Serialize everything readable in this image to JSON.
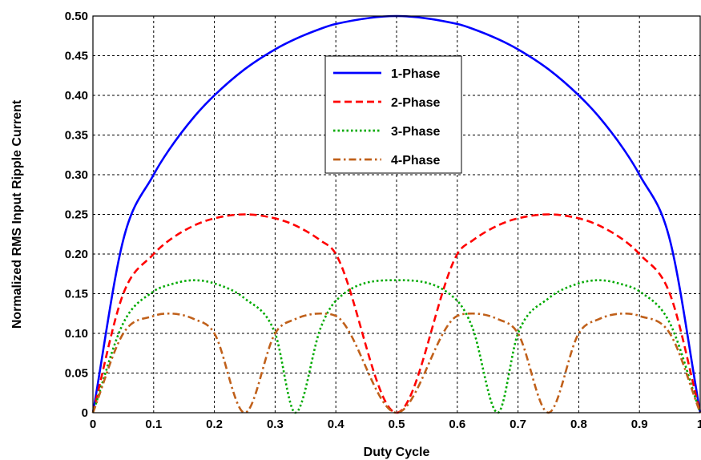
{
  "chart_data": {
    "type": "line",
    "title": "",
    "xlabel": "Duty Cycle",
    "ylabel": "Normalized RMS Input Ripple Current",
    "xlim": [
      0,
      1
    ],
    "ylim": [
      0,
      0.5
    ],
    "x_ticks": [
      "0",
      "0.1",
      "0.2",
      "0.3",
      "0.4",
      "0.5",
      "0.6",
      "0.7",
      "0.8",
      "0.9",
      "1"
    ],
    "y_ticks": [
      "0",
      "0.05",
      "0.10",
      "0.15",
      "0.20",
      "0.25",
      "0.30",
      "0.35",
      "0.40",
      "0.45",
      "0.50"
    ],
    "grid": true,
    "legend_position": "top-center",
    "x": [
      0,
      0.05,
      0.1,
      0.125,
      0.1667,
      0.2,
      0.25,
      0.3,
      0.3333,
      0.375,
      0.4,
      0.5,
      0.6,
      0.625,
      0.6667,
      0.7,
      0.75,
      0.8,
      0.8333,
      0.875,
      0.9,
      0.95,
      1
    ],
    "series": [
      {
        "name": "1-Phase",
        "color": "#0000ff",
        "dash": "solid",
        "values": [
          0,
          0.218,
          0.3,
          0.331,
          0.373,
          0.4,
          0.433,
          0.458,
          0.471,
          0.484,
          0.49,
          0.5,
          0.49,
          0.484,
          0.471,
          0.458,
          0.433,
          0.4,
          0.373,
          0.331,
          0.3,
          0.218,
          0
        ]
      },
      {
        "name": "2-Phase",
        "color": "#ff0000",
        "dash": "dashed",
        "values": [
          0,
          0.15,
          0.2,
          0.217,
          0.236,
          0.245,
          0.25,
          0.245,
          0.236,
          0.217,
          0.2,
          0,
          0.2,
          0.217,
          0.236,
          0.245,
          0.25,
          0.245,
          0.236,
          0.217,
          0.2,
          0.15,
          0
        ]
      },
      {
        "name": "3-Phase",
        "color": "#00aa00",
        "dash": "dotted",
        "values": [
          0,
          0.113,
          0.153,
          0.161,
          0.167,
          0.163,
          0.144,
          0.1,
          0,
          0.107,
          0.141,
          0.167,
          0.141,
          0.107,
          0,
          0.1,
          0.144,
          0.163,
          0.167,
          0.161,
          0.153,
          0.113,
          0
        ]
      },
      {
        "name": "4-Phase",
        "color": "#c0601a",
        "dash": "dashdot",
        "values": [
          0,
          0.1,
          0.122,
          0.125,
          0.118,
          0.1,
          0,
          0.1,
          0.118,
          0.125,
          0.122,
          0,
          0.122,
          0.125,
          0.118,
          0.1,
          0,
          0.1,
          0.118,
          0.125,
          0.122,
          0.1,
          0
        ]
      }
    ]
  }
}
